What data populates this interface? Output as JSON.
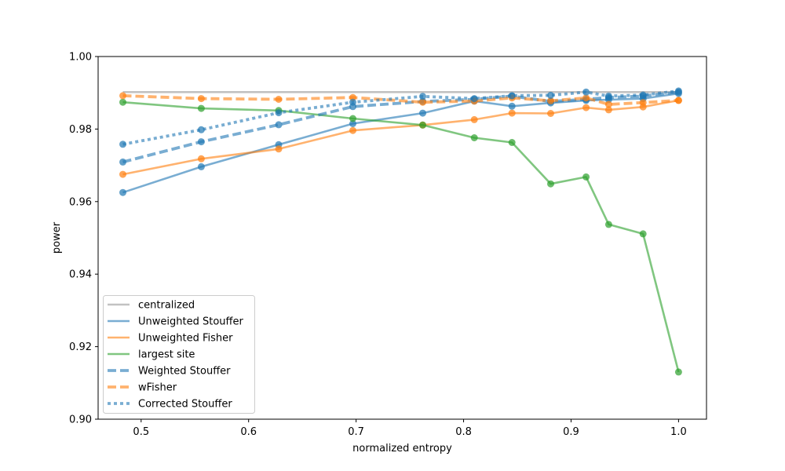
{
  "chart_data": {
    "type": "line",
    "title": "",
    "xlabel": "normalized entropy",
    "ylabel": "power",
    "xlim": [
      0.46,
      1.026
    ],
    "ylim": [
      0.9,
      1.0
    ],
    "grid": false,
    "legend_position": "lower-left",
    "x": [
      0.483,
      0.556,
      0.628,
      0.697,
      0.762,
      0.81,
      0.845,
      0.881,
      0.914,
      0.935,
      0.967,
      1.0
    ],
    "xticks": [
      "0.5",
      "0.6",
      "0.7",
      "0.8",
      "0.9",
      "1.0"
    ],
    "xtick_values": [
      0.5,
      0.6,
      0.7,
      0.8,
      0.9,
      1.0
    ],
    "yticks": [
      "0.90",
      "0.92",
      "0.94",
      "0.96",
      "0.98",
      "1.00"
    ],
    "ytick_values": [
      0.9,
      0.92,
      0.94,
      0.96,
      0.98,
      1.0
    ],
    "series": [
      {
        "name": "centralized",
        "color": "#999999",
        "style": "solid",
        "markers": false,
        "values": [
          0.9902,
          0.9902,
          0.9902,
          0.9902,
          0.9902,
          0.9902,
          0.9902,
          0.9902,
          0.9902,
          0.9902,
          0.9902,
          0.9902
        ]
      },
      {
        "name": "Unweighted Stouffer",
        "color": "#1f77b4",
        "style": "solid",
        "markers": true,
        "values": [
          0.9625,
          0.9696,
          0.9757,
          0.9815,
          0.9844,
          0.9877,
          0.9863,
          0.9872,
          0.9879,
          0.9881,
          0.9884,
          0.9898
        ]
      },
      {
        "name": "Unweighted Fisher",
        "color": "#ff7f0e",
        "style": "solid",
        "markers": true,
        "values": [
          0.9675,
          0.9718,
          0.9745,
          0.9796,
          0.9811,
          0.9826,
          0.9844,
          0.9843,
          0.9859,
          0.9853,
          0.9861,
          0.9879
        ]
      },
      {
        "name": "largest site",
        "color": "#2ca02c",
        "style": "solid",
        "markers": true,
        "values": [
          0.9874,
          0.9857,
          0.9851,
          0.9829,
          0.9811,
          0.9776,
          0.9763,
          0.9649,
          0.9668,
          0.9537,
          0.9511,
          0.913
        ]
      },
      {
        "name": "Weighted Stouffer",
        "color": "#1f77b4",
        "style": "dashed",
        "markers": true,
        "values": [
          0.9709,
          0.9765,
          0.9812,
          0.9862,
          0.9876,
          0.9882,
          0.9891,
          0.9876,
          0.9882,
          0.9887,
          0.9891,
          0.9902
        ]
      },
      {
        "name": "wFisher",
        "color": "#ff7f0e",
        "style": "dashed",
        "markers": true,
        "values": [
          0.9892,
          0.9884,
          0.9882,
          0.9887,
          0.9874,
          0.9877,
          0.9886,
          0.9878,
          0.9886,
          0.9868,
          0.9873,
          0.9879
        ]
      },
      {
        "name": "Corrected Stouffer",
        "color": "#1f77b4",
        "style": "dotted",
        "markers": true,
        "values": [
          0.9758,
          0.9798,
          0.9845,
          0.9874,
          0.989,
          0.9884,
          0.9892,
          0.9893,
          0.9902,
          0.9891,
          0.9894,
          0.9905
        ]
      }
    ]
  }
}
